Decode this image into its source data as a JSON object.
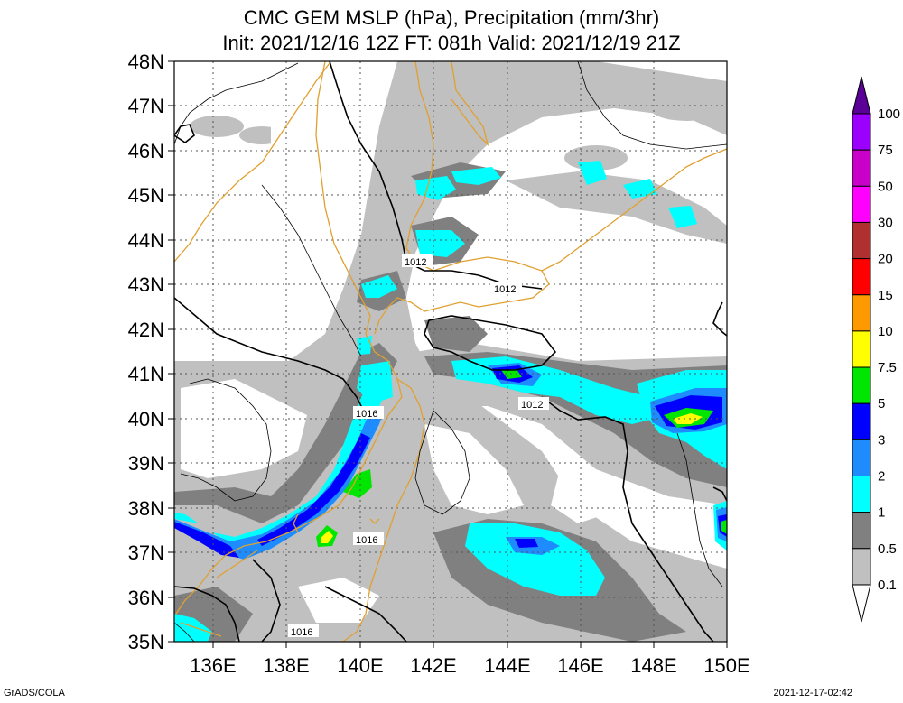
{
  "title_line1": "CMC GEM MSLP (hPa), Precipitation (mm/3hr)",
  "title_line2": "Init: 2021/12/16 12Z  FT: 081h  Valid: 2021/12/19 21Z",
  "footer_left": "GrADS/COLA",
  "footer_right": "2021-12-17-02:42",
  "lat_labels": [
    "48N",
    "47N",
    "46N",
    "45N",
    "44N",
    "43N",
    "42N",
    "41N",
    "40N",
    "39N",
    "38N",
    "37N",
    "36N",
    "35N"
  ],
  "lon_labels": [
    "136E",
    "138E",
    "140E",
    "142E",
    "144E",
    "146E",
    "148E",
    "150E"
  ],
  "colorbar": {
    "labels": [
      "100",
      "75",
      "50",
      "30",
      "20",
      "15",
      "10",
      "7.5",
      "5",
      "3",
      "2",
      "1",
      "0.5",
      "0.1"
    ],
    "colors": [
      "#9b00ff",
      "#c800c8",
      "#ff00ff",
      "#b03030",
      "#ff0000",
      "#ff9900",
      "#ffff00",
      "#00e600",
      "#0000ff",
      "#1e8cff",
      "#00ffff",
      "#808080",
      "#c0c0c0"
    ],
    "top_color": "#5a0096"
  },
  "isobars": [
    {
      "label": "1012"
    },
    {
      "label": "1012"
    },
    {
      "label": "1012"
    },
    {
      "label": "1016"
    },
    {
      "label": "1016"
    },
    {
      "label": "1016"
    }
  ],
  "colors": {
    "coast": "#e0a030",
    "isobar": "#000000",
    "grid": "#555555"
  }
}
